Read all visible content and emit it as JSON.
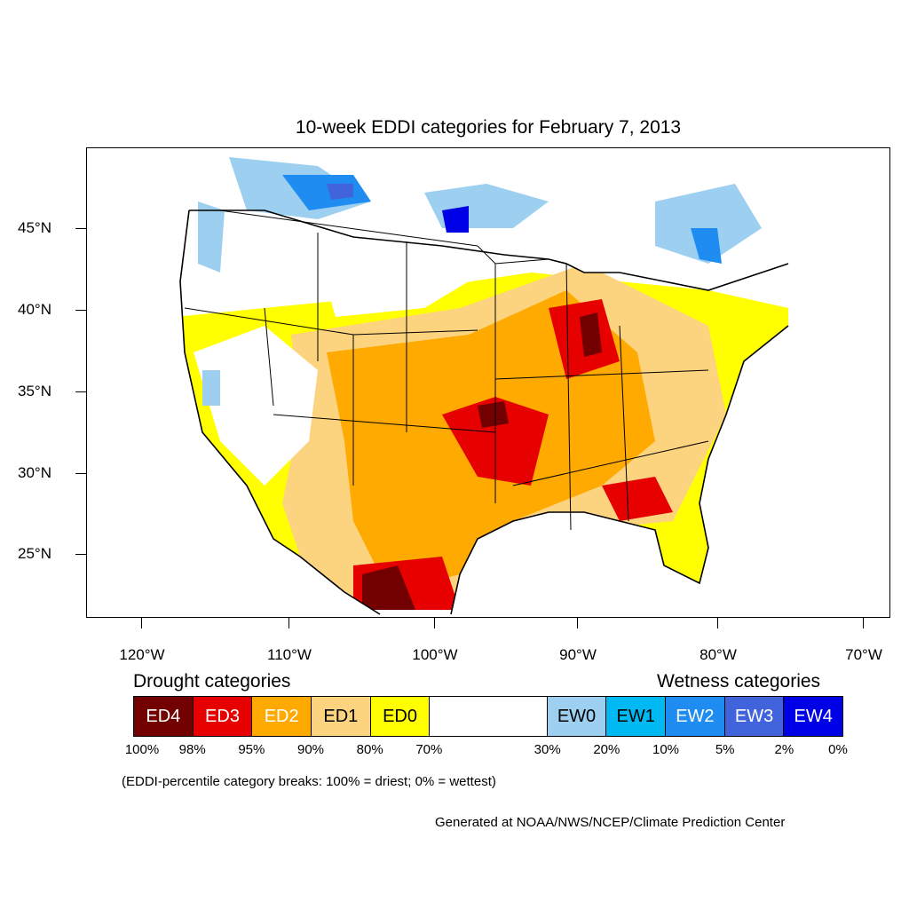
{
  "title": "10-week EDDI categories for February 7, 2013",
  "lat_labels": [
    "45°N",
    "40°N",
    "35°N",
    "30°N",
    "25°N"
  ],
  "lon_labels": [
    "120°W",
    "110°W",
    "100°W",
    "90°W",
    "80°W",
    "70°W"
  ],
  "legend": {
    "drought_heading": "Drought categories",
    "wetness_heading": "Wetness categories",
    "categories": [
      {
        "label": "ED4",
        "color": "#730000",
        "text_color": "#ffffff"
      },
      {
        "label": "ED3",
        "color": "#e60000",
        "text_color": "#ffffff"
      },
      {
        "label": "ED2",
        "color": "#ffaa00",
        "text_color": "#ffffff"
      },
      {
        "label": "ED1",
        "color": "#fcd37f",
        "text_color": "#000000"
      },
      {
        "label": "ED0",
        "color": "#ffff00",
        "text_color": "#000000"
      },
      {
        "label": "",
        "color": "#ffffff",
        "text_color": "#000000"
      },
      {
        "label": "EW0",
        "color": "#9ccff0",
        "text_color": "#000000"
      },
      {
        "label": "EW1",
        "color": "#00b8f2",
        "text_color": "#000000"
      },
      {
        "label": "EW2",
        "color": "#1e8cf0",
        "text_color": "#ffffff"
      },
      {
        "label": "EW3",
        "color": "#4164dc",
        "text_color": "#ffffff"
      },
      {
        "label": "EW4",
        "color": "#0000e6",
        "text_color": "#ffffff"
      }
    ],
    "breaks": [
      "100%",
      "98%",
      "95%",
      "90%",
      "80%",
      "70%",
      "30%",
      "20%",
      "10%",
      "5%",
      "2%",
      "0%"
    ]
  },
  "note": "(EDDI-percentile category breaks: 100% = driest; 0% = wettest)",
  "credit": "Generated at NOAA/NWS/NCEP/Climate Prediction Center"
}
